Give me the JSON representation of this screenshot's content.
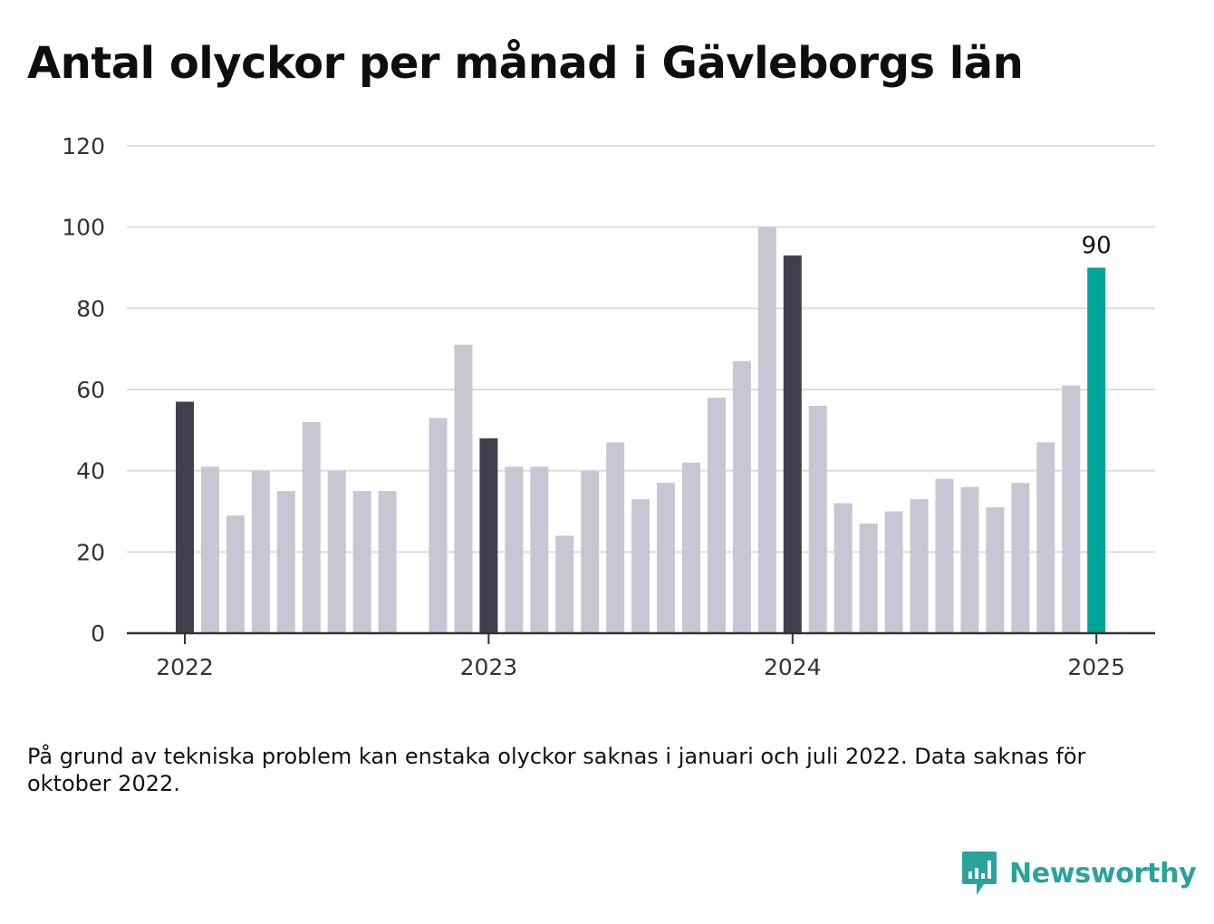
{
  "title": "Antal olyckor per månad i Gävleborgs län",
  "note": "På grund av tekniska problem kan enstaka olyckor saknas i januari och juli 2022. Data saknas för oktober 2022.",
  "brand": {
    "name": "Newsworthy",
    "icon": "bar-chart-speech-bubble-icon",
    "color": "#2aa39a"
  },
  "colors": {
    "bar_default": "#c8c6d2",
    "bar_january": "#413f4d",
    "bar_latest": "#00a599",
    "grid": "#dcdcdc",
    "axis": "#333333"
  },
  "chart_data": {
    "type": "bar",
    "title": "Antal olyckor per månad i Gävleborgs län",
    "xlabel": "",
    "ylabel": "",
    "ylim": [
      0,
      120
    ],
    "yticks": [
      0,
      20,
      40,
      60,
      80,
      100,
      120
    ],
    "xtick_labels": [
      "2022",
      "2023",
      "2024",
      "2025"
    ],
    "grid": true,
    "categories": [
      "2022-01",
      "2022-02",
      "2022-03",
      "2022-04",
      "2022-05",
      "2022-06",
      "2022-07",
      "2022-08",
      "2022-09",
      "2022-10",
      "2022-11",
      "2022-12",
      "2023-01",
      "2023-02",
      "2023-03",
      "2023-04",
      "2023-05",
      "2023-06",
      "2023-07",
      "2023-08",
      "2023-09",
      "2023-10",
      "2023-11",
      "2023-12",
      "2024-01",
      "2024-02",
      "2024-03",
      "2024-04",
      "2024-05",
      "2024-06",
      "2024-07",
      "2024-08",
      "2024-09",
      "2024-10",
      "2024-11",
      "2024-12",
      "2025-01"
    ],
    "values": [
      57,
      41,
      29,
      40,
      35,
      52,
      40,
      35,
      35,
      null,
      53,
      71,
      48,
      41,
      41,
      24,
      40,
      47,
      33,
      37,
      42,
      58,
      67,
      100,
      93,
      56,
      32,
      27,
      30,
      33,
      38,
      36,
      31,
      37,
      47,
      61,
      90
    ],
    "annotations": [
      {
        "category": "2025-01",
        "text": "90"
      }
    ]
  }
}
